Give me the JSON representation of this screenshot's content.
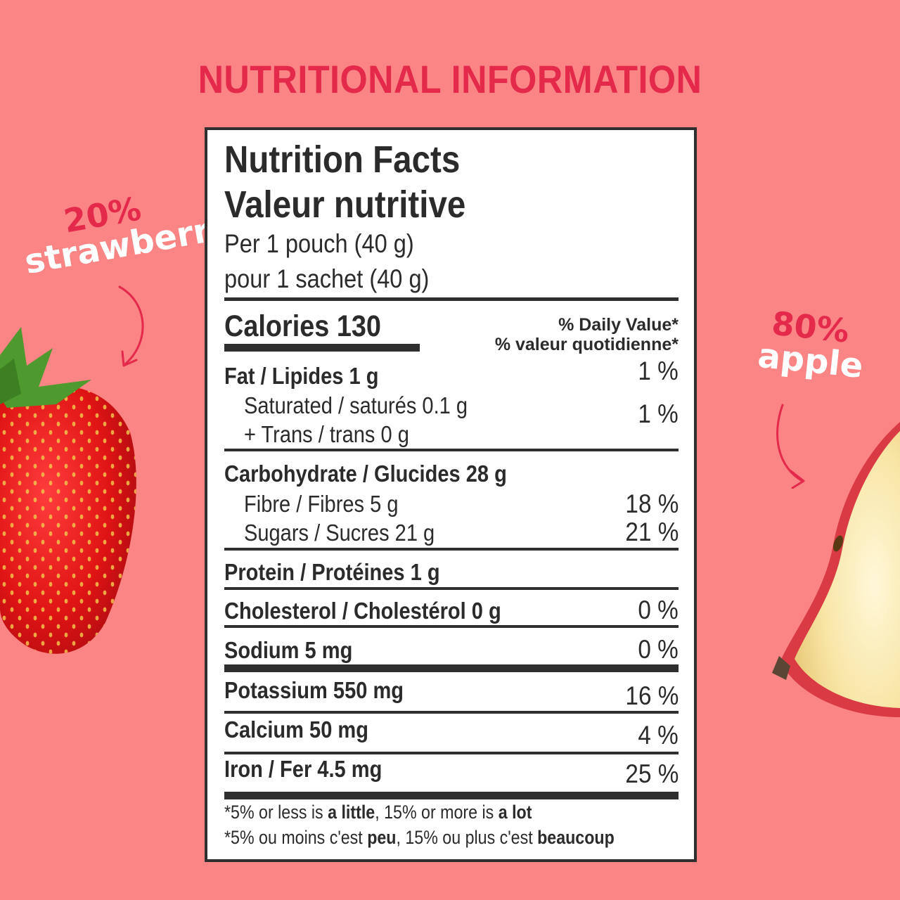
{
  "headline": "NUTRITIONAL INFORMATION",
  "strawberry": {
    "percent": "20%",
    "name": "strawberry"
  },
  "apple": {
    "percent": "80%",
    "name": "apple"
  },
  "colors": {
    "background": "#fb8484",
    "accent": "#e4294b",
    "label_text": "#ffffff",
    "panel_ink": "#2b2b2b"
  },
  "nutrition": {
    "title_en": "Nutrition Facts",
    "title_fr": "Valeur nutritive",
    "serving_en": "Per 1 pouch (40 g)",
    "serving_fr": "pour 1 sachet (40 g)",
    "calories": "Calories 130",
    "dv_header_en": "% Daily Value*",
    "dv_header_fr": "% valeur quotidienne*",
    "fat": {
      "label": "Fat / Lipides 1 g",
      "dv": "1 %"
    },
    "saturated": {
      "label": "Saturated / saturés 0.1 g",
      "dv": "1 %"
    },
    "trans": {
      "label": "+ Trans / trans 0 g"
    },
    "carbohydrate": {
      "label": "Carbohydrate / Glucides 28 g"
    },
    "fibre": {
      "label": "Fibre / Fibres 5 g",
      "dv": "18 %"
    },
    "sugars": {
      "label": "Sugars / Sucres 21 g",
      "dv": "21 %"
    },
    "protein": {
      "label": "Protein / Protéines 1 g"
    },
    "cholesterol": {
      "label": "Cholesterol / Cholestérol 0 g",
      "dv": "0 %"
    },
    "sodium": {
      "label": "Sodium 5 mg",
      "dv": "0 %"
    },
    "potassium": {
      "label": "Potassium 550 mg",
      "dv": "16 %"
    },
    "calcium": {
      "label": "Calcium 50 mg",
      "dv": "4 %"
    },
    "iron": {
      "label": "Iron / Fer 4.5 mg",
      "dv": "25 %"
    },
    "footnote_en": {
      "part1": "*5% or less is ",
      "bold1": "a little",
      "part2": ", 15% or more is ",
      "bold2": "a lot"
    },
    "footnote_fr": {
      "part1": "*5% ou moins c'est ",
      "bold1": "peu",
      "part2": ", 15% ou plus c'est ",
      "bold2": "beaucoup"
    }
  }
}
